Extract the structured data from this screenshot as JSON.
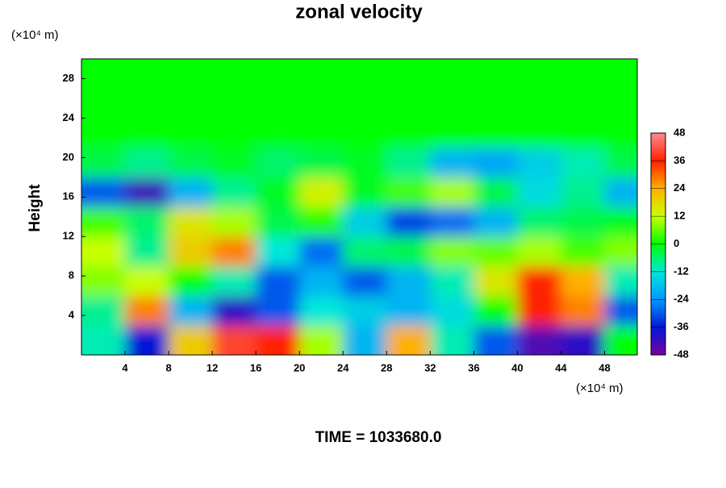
{
  "chart_data": {
    "type": "contour",
    "title": "zonal velocity",
    "y_label": "Height",
    "x_unit": "(×10⁴ m)",
    "y_unit": "(×10⁴ m)",
    "footer": "TIME = 1033680.0",
    "xlim": [
      0,
      51
    ],
    "ylim": [
      0,
      30
    ],
    "xticks": [
      4,
      8,
      12,
      16,
      20,
      24,
      28,
      32,
      36,
      40,
      44,
      48
    ],
    "yticks": [
      4,
      8,
      12,
      16,
      20,
      24,
      28
    ],
    "zlim": [
      -48,
      48
    ],
    "zticks": [
      -48,
      -36,
      -24,
      -12,
      0,
      12,
      24,
      36,
      48
    ],
    "colorscale": [
      "#7a00a0",
      "#0018d8",
      "#0098ff",
      "#00e8d8",
      "#00ff00",
      "#c8ff00",
      "#ffb000",
      "#ff2000",
      "#ff8c8c"
    ],
    "x": [
      2,
      6,
      10,
      14,
      18,
      22,
      26,
      30,
      34,
      38,
      42,
      46,
      50
    ],
    "y": [
      1.5,
      4.5,
      7.5,
      10.5,
      13.5,
      16.5,
      19.5,
      22.5,
      25.5,
      28.5
    ],
    "z": [
      [
        -10,
        -36,
        20,
        40,
        36,
        10,
        -20,
        24,
        -10,
        -30,
        -44,
        -40,
        0
      ],
      [
        -8,
        28,
        -20,
        -40,
        -30,
        -12,
        -16,
        -20,
        -14,
        0,
        36,
        28,
        -30
      ],
      [
        8,
        12,
        0,
        -10,
        -30,
        -20,
        -30,
        -20,
        -10,
        16,
        36,
        24,
        -10
      ],
      [
        12,
        -8,
        20,
        28,
        -12,
        -28,
        -6,
        -4,
        8,
        6,
        10,
        4,
        8
      ],
      [
        4,
        -6,
        16,
        10,
        -4,
        2,
        -16,
        -32,
        -28,
        -20,
        -6,
        -4,
        -2
      ],
      [
        -30,
        -42,
        -20,
        -8,
        -2,
        14,
        -2,
        4,
        10,
        -4,
        -14,
        -8,
        -20
      ],
      [
        -4,
        -8,
        -4,
        -2,
        -6,
        -4,
        -2,
        -8,
        -20,
        -22,
        -16,
        -10,
        -4
      ],
      [
        0,
        0,
        0,
        0,
        0,
        0,
        0,
        0,
        0,
        0,
        0,
        0,
        0
      ],
      [
        0,
        0,
        0,
        0,
        0,
        0,
        0,
        0,
        0,
        0,
        0,
        0,
        0
      ],
      [
        0,
        0,
        0,
        0,
        0,
        0,
        0,
        0,
        0,
        0,
        0,
        0,
        0
      ]
    ]
  }
}
